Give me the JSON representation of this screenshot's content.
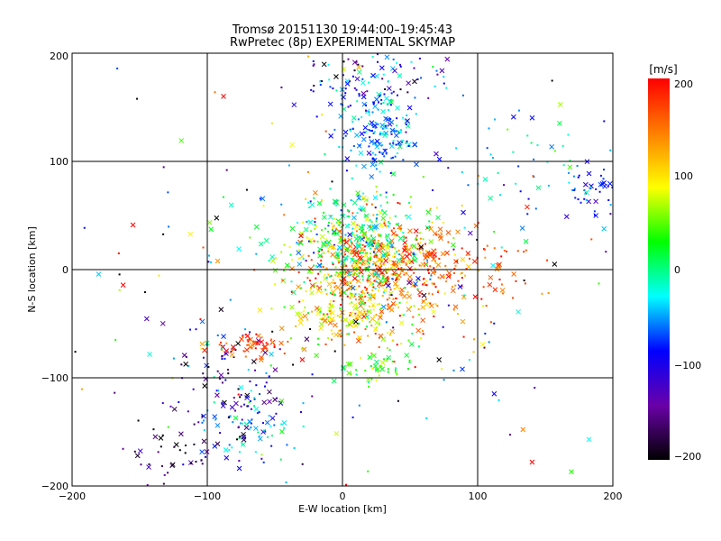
{
  "chart_data": {
    "type": "scatter",
    "title": "Tromsø 20151130 19:44:00–19:45:43",
    "subtitle": "RwPretec (8p) EXPERIMENTAL SKYMAP",
    "xlabel": "E-W location [km]",
    "ylabel": "N-S location [km]",
    "xlim": [
      -200,
      200
    ],
    "ylim": [
      -200,
      200
    ],
    "xticks": [
      "−200",
      "−100",
      "0",
      "100",
      "200"
    ],
    "yticks": [
      "−200",
      "−100",
      "0",
      "100",
      "200"
    ],
    "grid": true,
    "marker_types": [
      "x",
      "dot"
    ],
    "colorbar": {
      "label": "[m/s]",
      "range": [
        -200,
        200
      ],
      "ticks": [
        "200",
        "100",
        "0",
        "−100",
        "−200"
      ],
      "colormap": [
        "#000000",
        "#6a00a8",
        "#0000ff",
        "#00ffff",
        "#00ff00",
        "#ffff00",
        "#ff7f00",
        "#ff0000"
      ]
    },
    "clusters": [
      {
        "x": 30,
        "y": 0,
        "sx": 30,
        "sy": 25,
        "v": 150,
        "vs": 40,
        "n": 500
      },
      {
        "x": 10,
        "y": 25,
        "sx": 25,
        "sy": 25,
        "v": 20,
        "vs": 50,
        "n": 380
      },
      {
        "x": 10,
        "y": -45,
        "sx": 25,
        "sy": 15,
        "v": 90,
        "vs": 45,
        "n": 160
      },
      {
        "x": 25,
        "y": 125,
        "sx": 15,
        "sy": 20,
        "v": -60,
        "vs": 30,
        "n": 180
      },
      {
        "x": 20,
        "y": 175,
        "sx": 30,
        "sy": 15,
        "v": -100,
        "vs": 60,
        "n": 90
      },
      {
        "x": -65,
        "y": -145,
        "sx": 15,
        "sy": 15,
        "v": -50,
        "vs": 40,
        "n": 55
      },
      {
        "x": -80,
        "y": -110,
        "sx": 25,
        "sy": 35,
        "v": -120,
        "vs": 60,
        "n": 120
      },
      {
        "x": -130,
        "y": -165,
        "sx": 20,
        "sy": 20,
        "v": -170,
        "vs": 35,
        "n": 45
      },
      {
        "x": -65,
        "y": -70,
        "sx": 15,
        "sy": 6,
        "v": 170,
        "vs": 20,
        "n": 55
      },
      {
        "x": 185,
        "y": 70,
        "sx": 15,
        "sy": 10,
        "v": -90,
        "vs": 20,
        "n": 50
      },
      {
        "x": 150,
        "y": 90,
        "sx": 40,
        "sy": 30,
        "v": -40,
        "vs": 40,
        "n": 60
      },
      {
        "x": 85,
        "y": 0,
        "sx": 30,
        "sy": 20,
        "v": 165,
        "vs": 25,
        "n": 80
      },
      {
        "x": 25,
        "y": -90,
        "sx": 15,
        "sy": 8,
        "v": 40,
        "vs": 30,
        "n": 45
      },
      {
        "x": 0,
        "y": 0,
        "sx": 110,
        "sy": 110,
        "v": 0,
        "vs": 130,
        "n": 240
      }
    ]
  }
}
